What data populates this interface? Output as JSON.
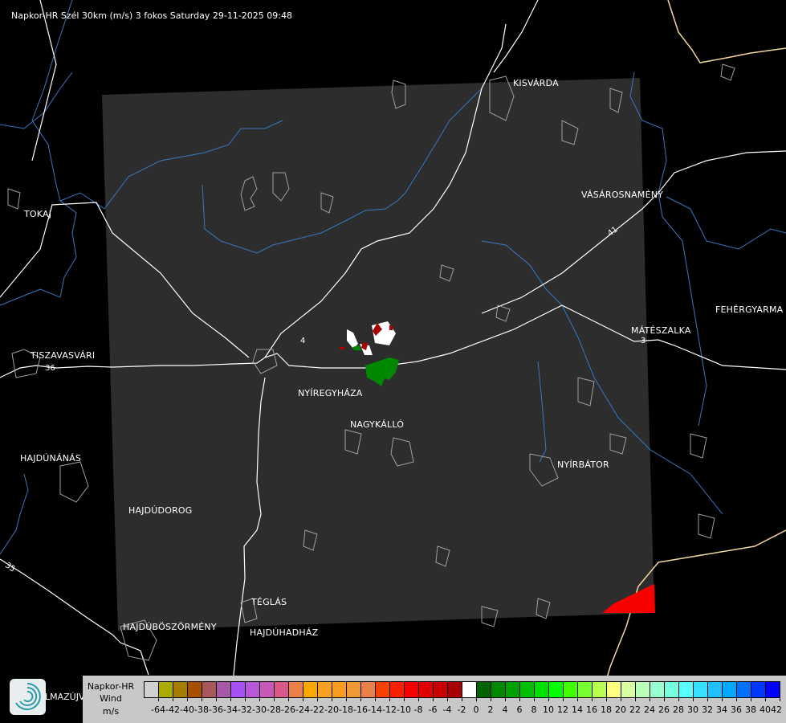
{
  "title": "Napkor-HR Szél 30km (m/s) 3 fokos Saturday 29-11-2025 09:48",
  "towns": [
    {
      "name": "KISVÁRDA"
    },
    {
      "name": "VÁSÁROSNAMÉNY"
    },
    {
      "name": "FEHÉRGYARMA"
    },
    {
      "name": "MÁTÉSZALKA"
    },
    {
      "name": "TOKAJ"
    },
    {
      "name": "TISZAVASVÁRI"
    },
    {
      "name": "NYÍREGYHÁZA"
    },
    {
      "name": "NAGYKÁLLÓ"
    },
    {
      "name": "NYÍRBÁTOR"
    },
    {
      "name": "HAJDÚNÁNÁS"
    },
    {
      "name": "HAJDÚDOROG"
    },
    {
      "name": "TÉGLÁS"
    },
    {
      "name": "HAJDÚBÖSZÖRMÉNY"
    },
    {
      "name": "HAJDÚHADHÁZ"
    },
    {
      "name": "LMAZÚJVÁR"
    }
  ],
  "road_numbers": [
    "36",
    "35",
    "41",
    "4",
    "3"
  ],
  "colors": {
    "background": "#000000",
    "radar_area": "#2d2d2d",
    "roads": "#ffffff",
    "rivers": "#3a78c0",
    "border": "#f0d8a0",
    "settlements": "#a0a0a0"
  },
  "legend": {
    "product": "Napkor-HR",
    "quantity": "Wind",
    "unit": "m/s",
    "labels": [
      "-64",
      "-42",
      "-40",
      "-38",
      "-36",
      "-34",
      "-32",
      "-30",
      "-28",
      "-26",
      "-24",
      "-22",
      "-20",
      "-18",
      "-16",
      "-14",
      "-12",
      "-10",
      "-8",
      "-6",
      "-4",
      "-2",
      "0",
      "2",
      "4",
      "6",
      "8",
      "10",
      "12",
      "14",
      "16",
      "18",
      "20",
      "22",
      "24",
      "26",
      "28",
      "30",
      "32",
      "34",
      "36",
      "38",
      "40",
      "42"
    ],
    "colors": [
      "#d0d0d0",
      "#aaaa00",
      "#a87c00",
      "#a85000",
      "#a85858",
      "#a858a8",
      "#a850f8",
      "#b858d8",
      "#c858b8",
      "#d85888",
      "#e88048",
      "#f8a800",
      "#f8a020",
      "#f89c20",
      "#f09838",
      "#e88048",
      "#f84000",
      "#f82000",
      "#f80000",
      "#e00000",
      "#c80000",
      "#a80000",
      "#ffffff",
      "#006400",
      "#008800",
      "#00a000",
      "#00c000",
      "#00e000",
      "#00ff00",
      "#40ff00",
      "#78ff30",
      "#b8ff50",
      "#ffff80",
      "#d8ffa0",
      "#b8ffb8",
      "#98ffd0",
      "#78ffe0",
      "#58ffff",
      "#38e0ff",
      "#20c0ff",
      "#00a8ff",
      "#0070ff",
      "#0038ff",
      "#0000ff"
    ]
  },
  "echoes": [
    {
      "color": "#ffffff",
      "label": "white echoes near Nyíregyháza"
    },
    {
      "color": "#a80000",
      "label": "dark red echoes"
    },
    {
      "color": "#008800",
      "label": "green echoes"
    },
    {
      "color": "#f80000",
      "label": "red echo bottom-right"
    }
  ]
}
